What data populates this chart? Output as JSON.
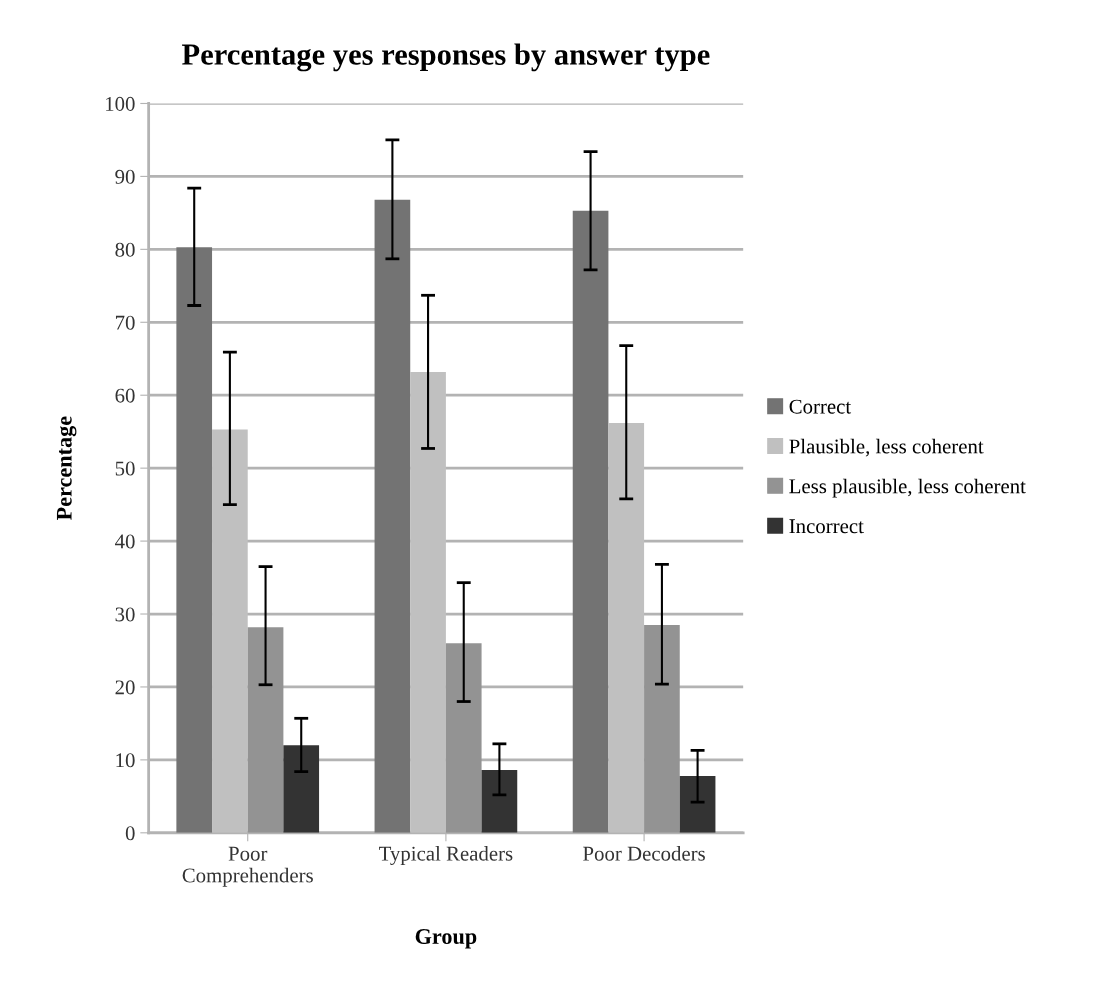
{
  "chart_data": {
    "type": "bar",
    "title": "Percentage yes responses by answer type",
    "xlabel": "Group",
    "ylabel": "Percentage",
    "categories": [
      "Poor\nComprehenders",
      "Typical Readers",
      "Poor Decoders"
    ],
    "series": [
      {
        "name": "Correct",
        "color": "#737373",
        "values": [
          80.3,
          86.8,
          85.3
        ],
        "errors": [
          [
            72.3,
            88.4
          ],
          [
            78.7,
            95.0
          ],
          [
            77.2,
            93.4
          ]
        ]
      },
      {
        "name": "Plausible, less coherent",
        "color": "#c0c0c0",
        "values": [
          55.3,
          63.2,
          56.2
        ],
        "errors": [
          [
            45.0,
            65.9
          ],
          [
            52.7,
            73.7
          ],
          [
            45.8,
            66.8
          ]
        ]
      },
      {
        "name": "Less plausible, less coherent",
        "color": "#939393",
        "values": [
          28.2,
          26.0,
          28.5
        ],
        "errors": [
          [
            20.3,
            36.5
          ],
          [
            18.0,
            34.3
          ],
          [
            20.4,
            36.8
          ]
        ]
      },
      {
        "name": "Incorrect",
        "color": "#333333",
        "values": [
          12.0,
          8.6,
          7.8
        ],
        "errors": [
          [
            8.4,
            15.7
          ],
          [
            5.2,
            12.2
          ],
          [
            4.2,
            11.3
          ]
        ]
      }
    ],
    "ylim": [
      0,
      100
    ],
    "yticks": [
      0,
      10,
      20,
      30,
      40,
      50,
      60,
      70,
      80,
      90,
      100
    ],
    "grid": "y",
    "legend": "right"
  }
}
